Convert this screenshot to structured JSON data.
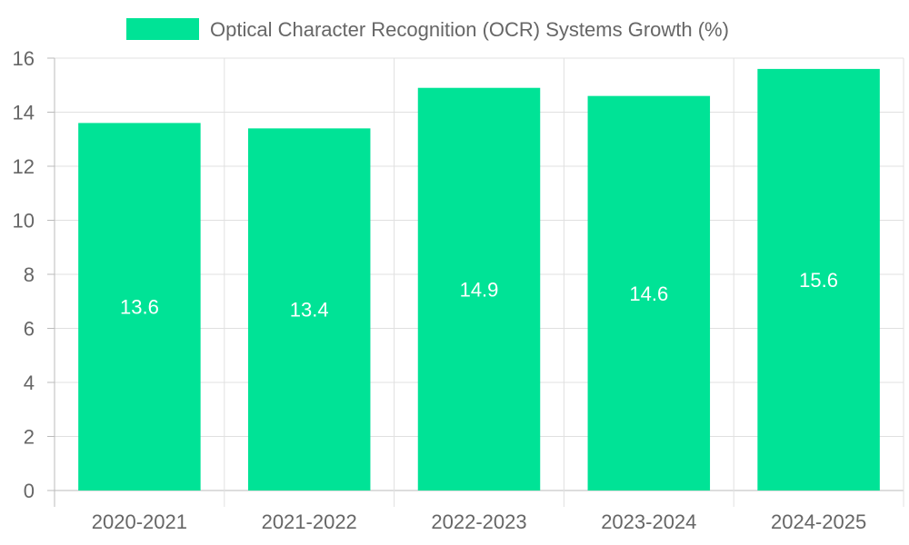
{
  "chart_data": {
    "type": "bar",
    "title": "",
    "xlabel": "",
    "ylabel": "",
    "categories": [
      "2020-2021",
      "2021-2022",
      "2022-2023",
      "2023-2024",
      "2024-2025"
    ],
    "series": [
      {
        "name": "Optical Character Recognition (OCR) Systems Growth (%)",
        "values": [
          13.6,
          13.4,
          14.9,
          14.6,
          15.6
        ],
        "color": "#00e396"
      }
    ],
    "ylim": [
      0,
      16
    ],
    "yticks": [
      0,
      2,
      4,
      6,
      8,
      10,
      12,
      14,
      16
    ],
    "grid": true,
    "legend_position": "top-center",
    "data_labels": [
      "13.6",
      "13.4",
      "14.9",
      "14.6",
      "15.6"
    ]
  }
}
